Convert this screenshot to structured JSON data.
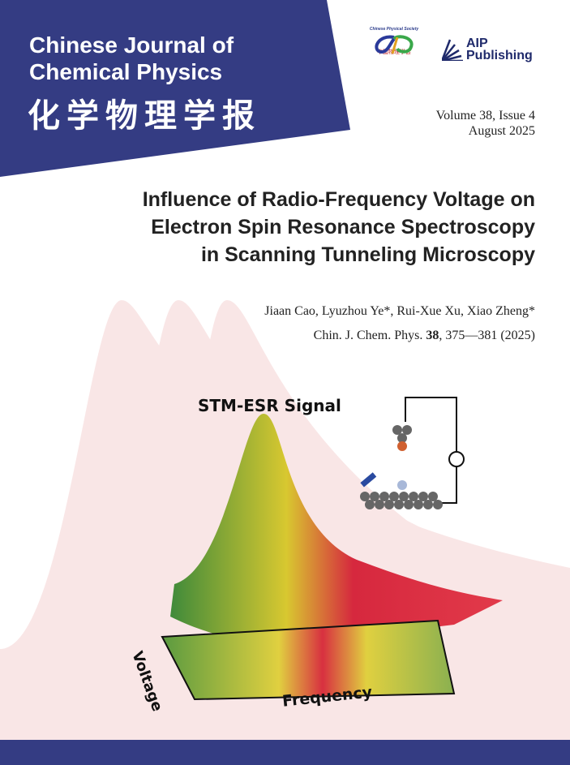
{
  "journal": {
    "title_line1": "Chinese Journal of",
    "title_line2": "Chemical Physics",
    "title_cn": "化学物理学报",
    "banner_color": "#343c83"
  },
  "logos": {
    "cps_name": "Chinese Physical Society",
    "cps_cn": "中国物理学会",
    "aip_line1": "AIP",
    "aip_line2": "Publishing"
  },
  "issue": {
    "volume": "Volume 38, Issue 4",
    "date": "August 2025"
  },
  "article": {
    "title": "Influence of Radio-Frequency Voltage on Electron Spin Resonance Spectroscopy in Scanning Tunneling Microscopy",
    "authors": "Jiaan Cao,  Lyuzhou Ye*,  Rui-Xue Xu,  Xiao Zheng*",
    "citation_journal": "Chin. J. Chem. Phys.",
    "citation_volume": "38",
    "citation_pages": ", 375—381 (2025)"
  },
  "illustration": {
    "signal_label": "STM-ESR Signal",
    "x_label": "Frequency",
    "y_label": "Voltage"
  }
}
